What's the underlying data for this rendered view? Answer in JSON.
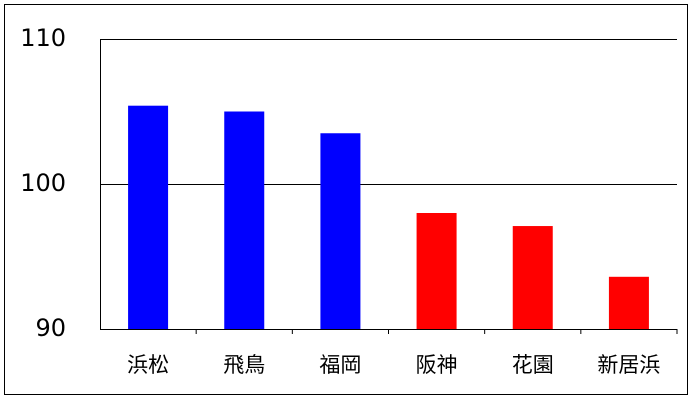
{
  "chart_data": {
    "type": "bar",
    "categories": [
      "浜松",
      "飛鳥",
      "福岡",
      "阪神",
      "花園",
      "新居浜"
    ],
    "values": [
      105.4,
      105.0,
      103.5,
      98.0,
      97.1,
      93.6
    ],
    "colors": [
      "#0000ff",
      "#0000ff",
      "#0000ff",
      "#ff0000",
      "#ff0000",
      "#ff0000"
    ],
    "ylim": [
      90,
      110
    ],
    "yticks": [
      90,
      100,
      110
    ],
    "grid": true
  }
}
